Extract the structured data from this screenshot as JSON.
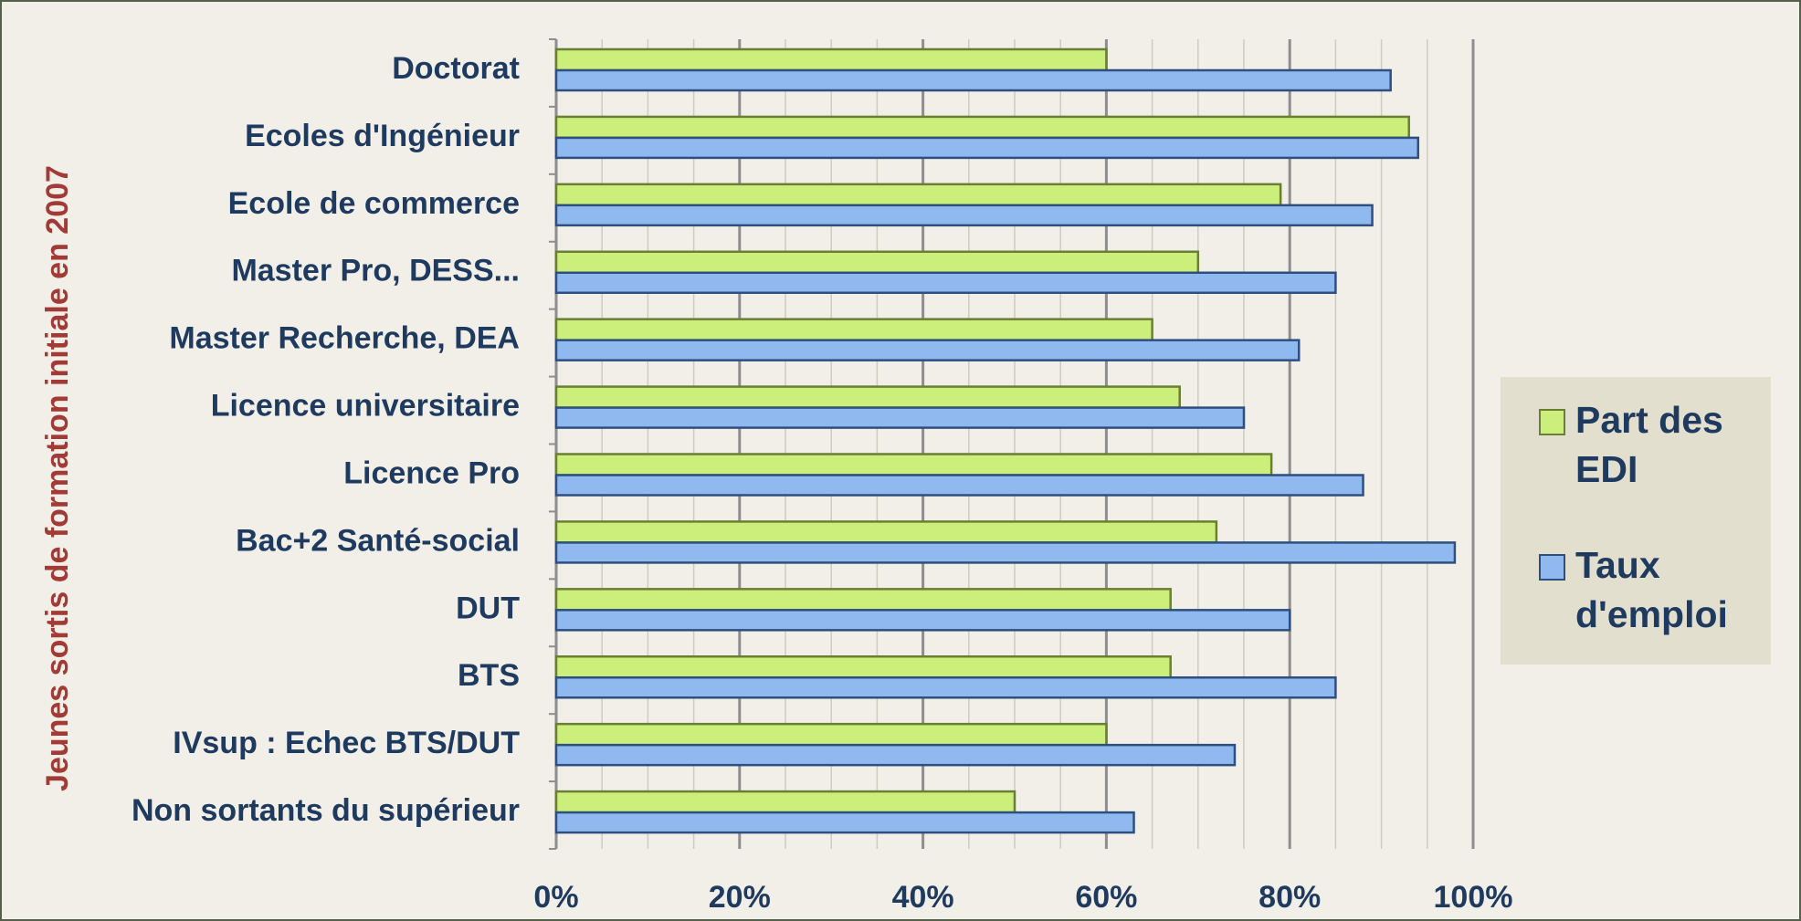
{
  "chart_data": {
    "type": "bar",
    "orientation": "horizontal",
    "y_axis_label": "Jeunes sortis de formation initiale en 2007",
    "categories": [
      "Doctorat",
      "Ecoles d'Ingénieur",
      "Ecole de commerce",
      "Master Pro, DESS...",
      "Master Recherche, DEA",
      "Licence universitaire",
      "Licence Pro",
      "Bac+2 Santé-social",
      "DUT",
      "BTS",
      "IVsup : Echec BTS/DUT",
      "Non sortants du supérieur"
    ],
    "series": [
      {
        "name": "Part des EDI",
        "color": "#ccef7c",
        "values": [
          60,
          93,
          79,
          70,
          65,
          68,
          78,
          72,
          67,
          67,
          60,
          50
        ]
      },
      {
        "name": "Taux d'emploi",
        "color": "#90b9f0",
        "values": [
          91,
          94,
          89,
          85,
          81,
          75,
          88,
          98,
          80,
          85,
          74,
          63
        ]
      }
    ],
    "xlim": [
      0,
      100
    ],
    "xticks": [
      {
        "value": 0,
        "label": "0%"
      },
      {
        "value": 20,
        "label": "20%"
      },
      {
        "value": 40,
        "label": "40%"
      },
      {
        "value": 60,
        "label": "60%"
      },
      {
        "value": 80,
        "label": "80%"
      },
      {
        "value": 100,
        "label": "100%"
      }
    ],
    "xminorticks": [
      5,
      10,
      15,
      25,
      30,
      35,
      45,
      50,
      55,
      65,
      70,
      75,
      85,
      90,
      95
    ],
    "grid": true,
    "legend": "right"
  }
}
